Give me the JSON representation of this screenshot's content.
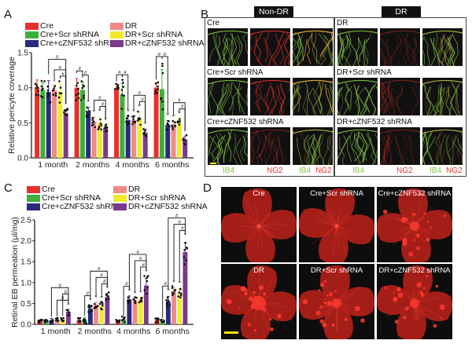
{
  "panels": {
    "a": "A",
    "b": "B",
    "c": "C",
    "d": "D"
  },
  "colors": {
    "Cre": "#e8302a",
    "Cre+Scr shRNA": "#3db03a",
    "Cre+cZNF532 shRNA": "#2c2a7c",
    "DR": "#f08a86",
    "DR+Scr shRNA": "#f0ea2a",
    "DR+cZNF532 shRNA": "#7a3a8c",
    "ib4_green": "#7fc241",
    "ng2_red": "#e8302a"
  },
  "legend": [
    {
      "label": "Cre",
      "key": "Cre"
    },
    {
      "label": "DR",
      "key": "DR"
    },
    {
      "label": "Cre+Scr shRNA",
      "key": "Cre+Scr shRNA"
    },
    {
      "label": "DR+Scr shRNA",
      "key": "DR+Scr shRNA"
    },
    {
      "label": "Cre+cZNF532 shRNA",
      "key": "Cre+cZNF532 shRNA"
    },
    {
      "label": "DR+cZNF532 shRNA",
      "key": "DR+cZNF532 shRNA"
    }
  ],
  "chart_data": [
    {
      "id": "A",
      "type": "bar",
      "title": "",
      "xlabel": "",
      "ylabel": "Relative pericyte coverage",
      "ylim": [
        0,
        1.5
      ],
      "yticks": [
        "0.0",
        "0.5",
        "1.0",
        "1.5"
      ],
      "ytick_values": [
        0,
        0.5,
        1.0,
        1.5
      ],
      "categories": [
        "1 month",
        "2 months",
        "4 months",
        "6 months"
      ],
      "series": [
        {
          "name": "Cre",
          "values": [
            1.01,
            1.0,
            0.99,
            1.0
          ],
          "errors": [
            0.1,
            0.13,
            0.06,
            0.07
          ]
        },
        {
          "name": "Cre+Scr shRNA",
          "values": [
            0.97,
            0.97,
            0.9,
            0.98
          ],
          "errors": [
            0.1,
            0.11,
            0.16,
            0.28
          ]
        },
        {
          "name": "Cre+cZNF532 shRNA",
          "values": [
            0.94,
            0.66,
            0.54,
            0.47
          ],
          "errors": [
            0.16,
            0.06,
            0.05,
            0.06
          ]
        },
        {
          "name": "DR",
          "values": [
            0.97,
            0.52,
            0.54,
            0.47
          ],
          "errors": [
            0.07,
            0.06,
            0.05,
            0.05
          ]
        },
        {
          "name": "DR+Scr shRNA",
          "values": [
            0.94,
            0.5,
            0.57,
            0.51
          ],
          "errors": [
            0.12,
            0.08,
            0.08,
            0.05
          ]
        },
        {
          "name": "DR+cZNF532 shRNA",
          "values": [
            0.64,
            0.43,
            0.36,
            0.26
          ],
          "errors": [
            0.05,
            0.04,
            0.05,
            0.05
          ]
        }
      ],
      "stars": [
        [
          false,
          false,
          false,
          false,
          false,
          true
        ],
        [
          false,
          false,
          true,
          true,
          true,
          true
        ],
        [
          false,
          false,
          true,
          true,
          true,
          true
        ],
        [
          false,
          false,
          true,
          true,
          true,
          true
        ]
      ],
      "significance_symbol": "#",
      "star_symbol": "*",
      "brackets": [
        {
          "group": 0,
          "from": 2,
          "to": 5,
          "level": 3
        },
        {
          "group": 0,
          "from": 3,
          "to": 5,
          "level": 2
        },
        {
          "group": 0,
          "from": 4,
          "to": 5,
          "level": 1
        },
        {
          "group": 1,
          "from": 0,
          "to": 1,
          "level": 1
        },
        {
          "group": 1,
          "from": 1,
          "to": 2,
          "level": 1
        },
        {
          "group": 1,
          "from": 3,
          "to": 5,
          "level": 2
        },
        {
          "group": 1,
          "from": 4,
          "to": 5,
          "level": 1
        },
        {
          "group": 2,
          "from": 0,
          "to": 1,
          "level": 1
        },
        {
          "group": 2,
          "from": 1,
          "to": 2,
          "level": 1
        },
        {
          "group": 2,
          "from": 3,
          "to": 5,
          "level": 2
        },
        {
          "group": 2,
          "from": 4,
          "to": 5,
          "level": 1
        },
        {
          "group": 3,
          "from": 0,
          "to": 1,
          "level": 1
        },
        {
          "group": 3,
          "from": 1,
          "to": 2,
          "level": 1
        },
        {
          "group": 3,
          "from": 3,
          "to": 5,
          "level": 2
        },
        {
          "group": 3,
          "from": 4,
          "to": 5,
          "level": 1
        }
      ],
      "legend_position": "top"
    },
    {
      "id": "C",
      "type": "bar",
      "title": "",
      "xlabel": "",
      "ylabel": "Retinal EB permeation (μl/mg)",
      "ylim": [
        0,
        2.5
      ],
      "yticks": [
        "0.0",
        "0.5",
        "1.0",
        "1.5",
        "2.0",
        "2.5"
      ],
      "ytick_values": [
        0,
        0.5,
        1.0,
        1.5,
        2.0,
        2.5
      ],
      "categories": [
        "1 month",
        "2 months",
        "4 months",
        "6 months"
      ],
      "series": [
        {
          "name": "Cre",
          "values": [
            0.08,
            0.1,
            0.07,
            0.1
          ],
          "errors": [
            0.03,
            0.04,
            0.03,
            0.05
          ]
        },
        {
          "name": "Cre+Scr shRNA",
          "values": [
            0.09,
            0.1,
            0.12,
            0.09
          ],
          "errors": [
            0.03,
            0.06,
            0.05,
            0.03
          ]
        },
        {
          "name": "Cre+cZNF532 shRNA",
          "values": [
            0.1,
            0.38,
            0.6,
            0.55
          ],
          "errors": [
            0.04,
            0.08,
            0.08,
            0.12
          ]
        },
        {
          "name": "DR",
          "values": [
            0.1,
            0.47,
            0.58,
            0.78
          ],
          "errors": [
            0.05,
            0.06,
            0.06,
            0.1
          ]
        },
        {
          "name": "DR+Scr shRNA",
          "values": [
            0.12,
            0.45,
            0.6,
            0.76
          ],
          "errors": [
            0.04,
            0.07,
            0.06,
            0.1
          ]
        },
        {
          "name": "DR+cZNF532 shRNA",
          "values": [
            0.3,
            0.65,
            0.93,
            1.73
          ],
          "errors": [
            0.06,
            0.09,
            0.17,
            0.22
          ]
        }
      ],
      "stars": [
        [
          false,
          false,
          false,
          false,
          false,
          true
        ],
        [
          false,
          false,
          true,
          true,
          true,
          true
        ],
        [
          false,
          false,
          true,
          true,
          true,
          true
        ],
        [
          false,
          false,
          true,
          true,
          true,
          true
        ]
      ],
      "significance_symbol": "#",
      "star_symbol": "*",
      "brackets": [
        {
          "group": 0,
          "from": 2,
          "to": 5,
          "level": 3
        },
        {
          "group": 0,
          "from": 4,
          "to": 5,
          "level": 2
        },
        {
          "group": 0,
          "from": 3,
          "to": 5,
          "level": 1
        },
        {
          "group": 1,
          "from": 1,
          "to": 2,
          "level": 1
        },
        {
          "group": 1,
          "from": 2,
          "to": 5,
          "level": 3
        },
        {
          "group": 1,
          "from": 3,
          "to": 5,
          "level": 2
        },
        {
          "group": 1,
          "from": 4,
          "to": 5,
          "level": 1
        },
        {
          "group": 2,
          "from": 1,
          "to": 2,
          "level": 1
        },
        {
          "group": 2,
          "from": 2,
          "to": 5,
          "level": 3
        },
        {
          "group": 2,
          "from": 3,
          "to": 5,
          "level": 2
        },
        {
          "group": 2,
          "from": 4,
          "to": 5,
          "level": 1
        },
        {
          "group": 3,
          "from": 1,
          "to": 2,
          "level": 1
        },
        {
          "group": 3,
          "from": 2,
          "to": 5,
          "level": 3
        },
        {
          "group": 3,
          "from": 3,
          "to": 5,
          "level": 2
        },
        {
          "group": 3,
          "from": 4,
          "to": 5,
          "level": 1
        }
      ],
      "legend_position": "top"
    }
  ],
  "panel_b": {
    "headers": [
      "Non-DR",
      "DR"
    ],
    "left_rows": [
      "Cre",
      "Cre+Scr shRNA",
      "Cre+cZNF532 shRNA"
    ],
    "right_rows": [
      "DR",
      "DR+Scr shRNA",
      "DR+cZNF532 shRNA"
    ],
    "channels": {
      "green": "IB4",
      "red": "NG2"
    }
  },
  "panel_d": {
    "tiles": [
      "Cre",
      "Cre+Scr shRNA",
      "Cre+cZNF532 shRNA",
      "DR",
      "DR+Scr shRNA",
      "DR+cZNF532 shRNA"
    ]
  }
}
